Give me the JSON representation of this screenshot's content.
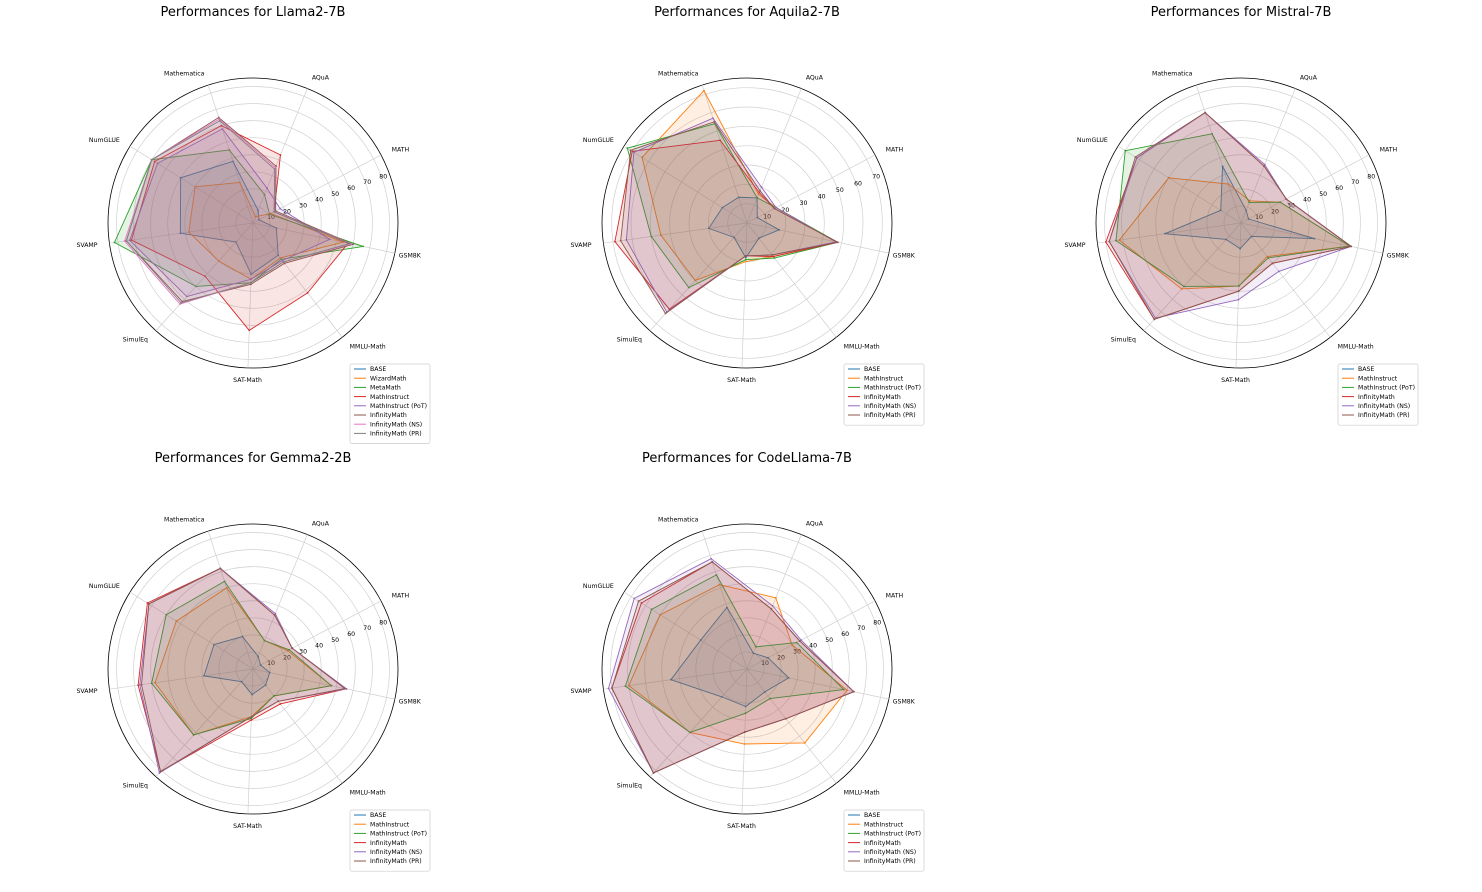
{
  "figure": {
    "name": "radar-performance-figure"
  },
  "colors": {
    "BASE": "#1f77b4",
    "WizardMath": "#ff7f0e",
    "MetaMath": "#2ca02c",
    "MathInstruct": "#d62728",
    "MathInstruct (PoT)": "#9467bd",
    "InfinityMath": "#8c564b",
    "InfinityMath (NS)": "#e377c2",
    "InfinityMath (PR)": "#7f7f7f"
  },
  "chart_data": [
    {
      "type": "radar",
      "title": "Performances for Llama2-7B",
      "axes": [
        "GSM8K",
        "MATH",
        "AQuA",
        "Mathematica",
        "NumGLUE",
        "SVAMP",
        "SimulEq",
        "SAT-Math",
        "MMLU-Math"
      ],
      "radial_ticks": [
        10,
        20,
        30,
        40,
        50,
        60,
        70,
        80
      ],
      "rlim": [
        0,
        85
      ],
      "legend_placement": "lower-right",
      "series": [
        {
          "name": "BASE",
          "color_index": 0,
          "values": [
            14,
            4,
            8,
            38,
            50,
            43,
            15,
            30,
            24
          ]
        },
        {
          "name": "WizardMath",
          "color_index": 1,
          "values": [
            54,
            12,
            4,
            25,
            40,
            38,
            30,
            33,
            26
          ]
        },
        {
          "name": "MetaMath",
          "color_index": 2,
          "values": [
            66,
            11,
            18,
            45,
            70,
            82,
            50,
            35,
            27
          ]
        },
        {
          "name": "MathInstruct",
          "color_index": 3,
          "values": [
            57,
            14,
            43,
            60,
            68,
            72,
            42,
            63,
            52
          ]
        },
        {
          "name": "MathInstruct (PoT)",
          "color_index": 4,
          "values": [
            46,
            18,
            22,
            58,
            66,
            73,
            58,
            33,
            28
          ]
        },
        {
          "name": "InfinityMath",
          "color_index": 5,
          "values": [
            60,
            15,
            36,
            65,
            70,
            75,
            62,
            36,
            30
          ]
        },
        {
          "name": "InfinityMath (NS)",
          "color_index": 6,
          "values": [
            59,
            14,
            35,
            64,
            70,
            76,
            64,
            35,
            29
          ]
        },
        {
          "name": "InfinityMath (PR)",
          "color_index": 7,
          "values": [
            58,
            14,
            34,
            63,
            70,
            75,
            63,
            35,
            29
          ]
        }
      ]
    },
    {
      "type": "radar",
      "title": "Performances for Aquila2-7B",
      "axes": [
        "GSM8K",
        "MATH",
        "AQuA",
        "Mathematica",
        "NumGLUE",
        "SVAMP",
        "SimulEq",
        "SAT-Math",
        "MMLU-Math"
      ],
      "radial_ticks": [
        10,
        20,
        30,
        40,
        50,
        60,
        70
      ],
      "rlim": [
        0,
        75
      ],
      "legend_placement": "lower-right",
      "series": [
        {
          "name": "BASE",
          "color_index": 0,
          "values": [
            17,
            6,
            14,
            14,
            15,
            20,
            10,
            18,
            10
          ]
        },
        {
          "name": "MathInstruct",
          "color_index": 1,
          "values": [
            47,
            17,
            16,
            72,
            64,
            45,
            40,
            20,
            22
          ]
        },
        {
          "name": "MathInstruct (PoT)",
          "color_index": 2,
          "values": [
            48,
            17,
            14,
            54,
            73,
            50,
            45,
            19,
            23
          ]
        },
        {
          "name": "InfinityMath",
          "color_index": 3,
          "values": [
            48,
            16,
            17,
            45,
            70,
            69,
            60,
            17,
            22
          ]
        },
        {
          "name": "InfinityMath (NS)",
          "color_index": 4,
          "values": [
            47,
            17,
            20,
            57,
            69,
            63,
            62,
            17,
            21
          ]
        },
        {
          "name": "InfinityMath (PR)",
          "color_index": 5,
          "values": [
            48,
            16,
            18,
            55,
            71,
            66,
            63,
            17,
            21
          ]
        }
      ]
    },
    {
      "type": "radar",
      "title": "Performances for Mistral-7B",
      "axes": [
        "GSM8K",
        "MATH",
        "AQuA",
        "Mathematica",
        "NumGLUE",
        "SVAMP",
        "SimulEq",
        "SAT-Math",
        "MMLU-Math"
      ],
      "radial_ticks": [
        10,
        20,
        30,
        40,
        50,
        60,
        70,
        80
      ],
      "rlim": [
        0,
        85
      ],
      "legend_placement": "lower-right",
      "series": [
        {
          "name": "BASE",
          "color_index": 0,
          "values": [
            44,
            5,
            8,
            35,
            14,
            45,
            13,
            15,
            10
          ]
        },
        {
          "name": "MathInstruct",
          "color_index": 1,
          "values": [
            65,
            26,
            14,
            24,
            50,
            72,
            52,
            37,
            25
          ]
        },
        {
          "name": "MathInstruct (PoT)",
          "color_index": 2,
          "values": [
            65,
            26,
            13,
            55,
            80,
            74,
            50,
            37,
            26
          ]
        },
        {
          "name": "InfinityMath",
          "color_index": 3,
          "values": [
            66,
            30,
            36,
            68,
            72,
            80,
            76,
            40,
            30
          ]
        },
        {
          "name": "InfinityMath (NS)",
          "color_index": 4,
          "values": [
            66,
            30,
            37,
            68,
            72,
            78,
            75,
            45,
            36
          ]
        },
        {
          "name": "InfinityMath (PR)",
          "color_index": 5,
          "values": [
            66,
            30,
            36,
            68,
            73,
            78,
            76,
            40,
            30
          ]
        }
      ]
    },
    {
      "type": "radar",
      "title": "Performances for Gemma2-2B",
      "axes": [
        "GSM8K",
        "MATH",
        "AQuA",
        "Mathematica",
        "NumGLUE",
        "SVAMP",
        "SimulEq",
        "SAT-Math",
        "MMLU-Math"
      ],
      "radial_ticks": [
        10,
        20,
        30,
        40,
        50,
        60,
        70,
        80
      ],
      "rlim": [
        0,
        85
      ],
      "legend_placement": "lower-right",
      "series": [
        {
          "name": "BASE",
          "color_index": 0,
          "values": [
            10,
            5,
            8,
            20,
            27,
            29,
            10,
            15,
            12
          ]
        },
        {
          "name": "MathInstruct",
          "color_index": 1,
          "values": [
            47,
            23,
            18,
            50,
            53,
            58,
            52,
            28,
            20
          ]
        },
        {
          "name": "MathInstruct (PoT)",
          "color_index": 2,
          "values": [
            47,
            24,
            18,
            54,
            60,
            60,
            52,
            29,
            20
          ]
        },
        {
          "name": "InfinityMath",
          "color_index": 3,
          "values": [
            56,
            26,
            34,
            62,
            73,
            68,
            81,
            30,
            26
          ]
        },
        {
          "name": "InfinityMath (NS)",
          "color_index": 4,
          "values": [
            56,
            26,
            35,
            62,
            72,
            67,
            82,
            28,
            24
          ]
        },
        {
          "name": "InfinityMath (PR)",
          "color_index": 5,
          "values": [
            55,
            26,
            34,
            62,
            72,
            66,
            81,
            28,
            24
          ]
        }
      ]
    },
    {
      "type": "radar",
      "title": "Performances for CodeLlama-7B",
      "axes": [
        "GSM8K",
        "MATH",
        "AQuA",
        "Mathematica",
        "NumGLUE",
        "SVAMP",
        "SimulEq",
        "SAT-Math",
        "MMLU-Math"
      ],
      "radial_ticks": [
        10,
        20,
        30,
        40,
        50,
        60,
        70,
        80
      ],
      "rlim": [
        0,
        85
      ],
      "legend_placement": "lower-right",
      "series": [
        {
          "name": "BASE",
          "color_index": 0,
          "values": [
            25,
            14,
            10,
            38,
            32,
            45,
            22,
            22,
            17
          ]
        },
        {
          "name": "MathInstruct",
          "color_index": 1,
          "values": [
            60,
            30,
            45,
            52,
            60,
            70,
            50,
            44,
            55
          ]
        },
        {
          "name": "MathInstruct (PoT)",
          "color_index": 2,
          "values": [
            58,
            33,
            14,
            58,
            66,
            72,
            50,
            26,
            22
          ]
        },
        {
          "name": "InfinityMath",
          "color_index": 3,
          "values": [
            64,
            35,
            38,
            66,
            73,
            80,
            82,
            37,
            37
          ]
        },
        {
          "name": "InfinityMath (NS)",
          "color_index": 4,
          "values": [
            64,
            36,
            40,
            68,
            78,
            82,
            82,
            37,
            37
          ]
        },
        {
          "name": "InfinityMath (PR)",
          "color_index": 5,
          "values": [
            64,
            35,
            38,
            66,
            75,
            80,
            82,
            37,
            37
          ]
        }
      ]
    }
  ]
}
